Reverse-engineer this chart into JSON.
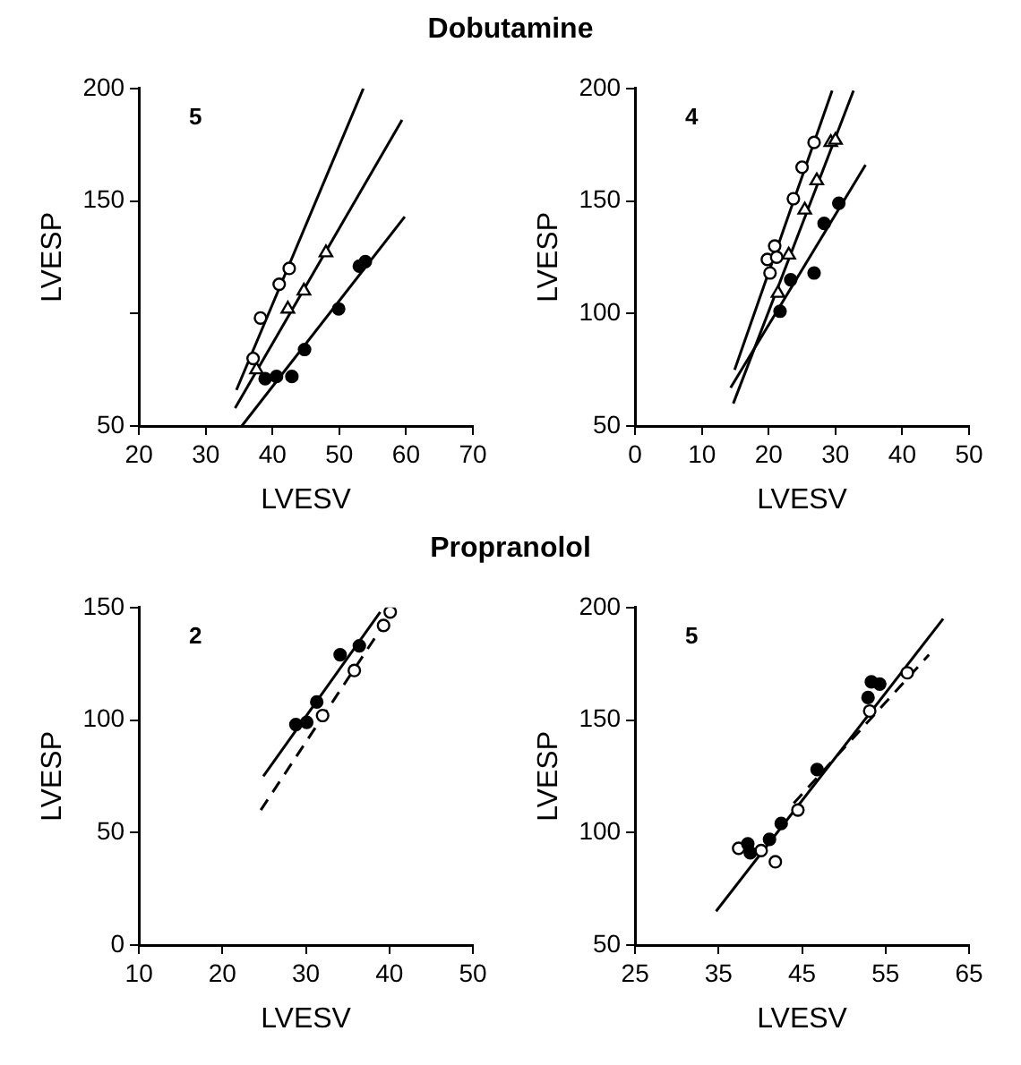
{
  "chart_data": [
    {
      "type": "scatter",
      "title": "Dobutamine",
      "xlabel": "LVESV",
      "ylabel": "LVESP",
      "annotations": [
        "5"
      ],
      "xlim": [
        20,
        70
      ],
      "xticks": [
        20,
        30,
        40,
        50,
        60,
        70
      ],
      "ylim": [
        50,
        200
      ],
      "yticks": [
        50,
        {
          "value": 100,
          "label": null
        },
        150,
        200
      ],
      "series": [
        {
          "color": "#ffffff",
          "marker": "circle",
          "x": [
            37.1,
            38.2,
            41.0,
            42.5
          ],
          "values": [
            80,
            98,
            113,
            120
          ]
        },
        {
          "color": "#ffffff",
          "marker": "triangle",
          "x": [
            37.6,
            42.3,
            44.7,
            48.0
          ],
          "values": [
            75,
            102,
            110,
            127
          ]
        },
        {
          "color": "#000000",
          "marker": "circle",
          "x": [
            38.9,
            40.6,
            42.9,
            44.8,
            49.9,
            53.0,
            53.9
          ],
          "values": [
            71,
            72,
            72,
            84,
            102,
            121,
            123
          ]
        },
        {
          "type": "line",
          "color": "#000000",
          "line_style": "solid",
          "x": [
            34.6,
            53.6
          ],
          "values": [
            66,
            200
          ]
        },
        {
          "type": "line",
          "color": "#000000",
          "line_style": "solid",
          "x": [
            34.4,
            59.4
          ],
          "values": [
            58,
            186
          ]
        },
        {
          "type": "line",
          "color": "#000000",
          "line_style": "solid",
          "x": [
            35.4,
            59.8
          ],
          "values": [
            50,
            143
          ]
        }
      ]
    },
    {
      "type": "scatter",
      "xlabel": "LVESV",
      "ylabel": "LVESP",
      "annotations": [
        "4"
      ],
      "xlim": [
        0,
        50
      ],
      "xticks": [
        0,
        10,
        20,
        30,
        40,
        50
      ],
      "ylim": [
        50,
        200
      ],
      "yticks": [
        50,
        100,
        150,
        200
      ],
      "series": [
        {
          "color": "#ffffff",
          "marker": "circle",
          "x": [
            20.2,
            19.8,
            20.9,
            21.2,
            23.7,
            25.0,
            26.8
          ],
          "values": [
            118,
            124,
            130,
            125,
            151,
            165,
            176
          ]
        },
        {
          "color": "#ffffff",
          "marker": "triangle",
          "x": [
            21.4,
            23.0,
            25.4,
            27.2,
            29.3,
            30.0
          ],
          "values": [
            109,
            126,
            146,
            159,
            176,
            177
          ]
        },
        {
          "color": "#000000",
          "marker": "circle",
          "x": [
            21.7,
            23.3,
            26.8,
            28.3,
            30.5
          ],
          "values": [
            101,
            115,
            118,
            140,
            149
          ]
        },
        {
          "type": "line",
          "color": "#000000",
          "line_style": "solid",
          "x": [
            14.9,
            29.5
          ],
          "values": [
            75,
            199
          ]
        },
        {
          "type": "line",
          "color": "#000000",
          "line_style": "solid",
          "x": [
            14.7,
            32.7
          ],
          "values": [
            60,
            199
          ]
        },
        {
          "type": "line",
          "color": "#000000",
          "line_style": "solid",
          "x": [
            14.3,
            34.5
          ],
          "values": [
            67,
            166
          ]
        }
      ]
    },
    {
      "type": "scatter",
      "title": "Propranolol",
      "xlabel": "LVESV",
      "ylabel": "LVESP",
      "annotations": [
        "2"
      ],
      "xlim": [
        10,
        50
      ],
      "xticks": [
        10,
        20,
        30,
        40,
        50
      ],
      "ylim": [
        0,
        150
      ],
      "yticks": [
        0,
        50,
        100,
        150
      ],
      "series": [
        {
          "color": "#000000",
          "marker": "circle",
          "x": [
            28.8,
            30.1,
            31.3,
            34.1,
            36.4
          ],
          "values": [
            98,
            99,
            108,
            129,
            133
          ]
        },
        {
          "color": "#ffffff",
          "marker": "circle",
          "x": [
            32.0,
            35.8,
            39.3,
            40.1
          ],
          "values": [
            102,
            122,
            142,
            148
          ]
        },
        {
          "type": "line",
          "color": "#000000",
          "line_style": "solid",
          "x": [
            24.9,
            38.9
          ],
          "values": [
            75,
            148
          ]
        },
        {
          "type": "line",
          "color": "#000000",
          "line_style": "dashed",
          "x": [
            24.6,
            40.5
          ],
          "values": [
            60,
            149
          ]
        }
      ]
    },
    {
      "type": "scatter",
      "xlabel": "LVESV",
      "ylabel": "LVESP",
      "annotations": [
        "5"
      ],
      "xlim": [
        25,
        65
      ],
      "xticks": [
        25,
        35,
        45,
        55,
        65
      ],
      "ylim": [
        50,
        200
      ],
      "yticks": [
        50,
        100,
        150,
        200
      ],
      "series": [
        {
          "color": "#000000",
          "marker": "circle",
          "x": [
            38.5,
            38.8,
            41.1,
            42.5,
            46.8,
            52.9,
            53.3,
            54.3
          ],
          "values": [
            95,
            91,
            97,
            104,
            128,
            160,
            167,
            166
          ]
        },
        {
          "color": "#ffffff",
          "marker": "circle",
          "x": [
            37.4,
            40.1,
            41.8,
            44.5,
            53.1,
            57.6
          ],
          "values": [
            93,
            92,
            87,
            110,
            154,
            171
          ]
        },
        {
          "type": "line",
          "color": "#000000",
          "line_style": "solid",
          "x": [
            34.7,
            61.9
          ],
          "values": [
            65,
            195
          ]
        },
        {
          "type": "line",
          "color": "#000000",
          "line_style": "dashed",
          "x": [
            44.0,
            60.2
          ],
          "values": [
            113,
            179
          ]
        }
      ]
    }
  ]
}
